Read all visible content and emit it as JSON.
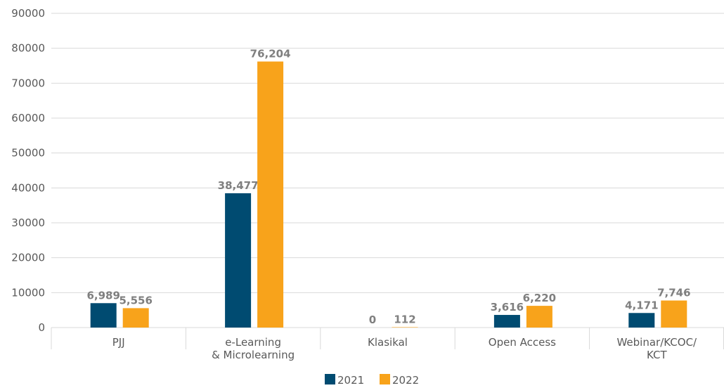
{
  "chart_data": {
    "type": "bar",
    "categories": [
      "PJJ",
      "e-Learning\n& Microlearning",
      "Klasikal",
      "Open Access",
      "Webinar/KCOC/\nKCT"
    ],
    "series": [
      {
        "name": "2021",
        "color": "#004b71",
        "values": [
          6989,
          38477,
          0,
          3616,
          4171
        ],
        "value_labels": [
          "6,989",
          "38,477",
          "0",
          "3,616",
          "4,171"
        ]
      },
      {
        "name": "2022",
        "color": "#f8a31b",
        "values": [
          5556,
          76204,
          112,
          6220,
          7746
        ],
        "value_labels": [
          "5,556",
          "76,204",
          "112",
          "6,220",
          "7,746"
        ]
      }
    ],
    "ylim": [
      0,
      90000
    ],
    "yticks": [
      0,
      10000,
      20000,
      30000,
      40000,
      50000,
      60000,
      70000,
      80000,
      90000
    ],
    "grid": true,
    "legend": "bottom"
  }
}
